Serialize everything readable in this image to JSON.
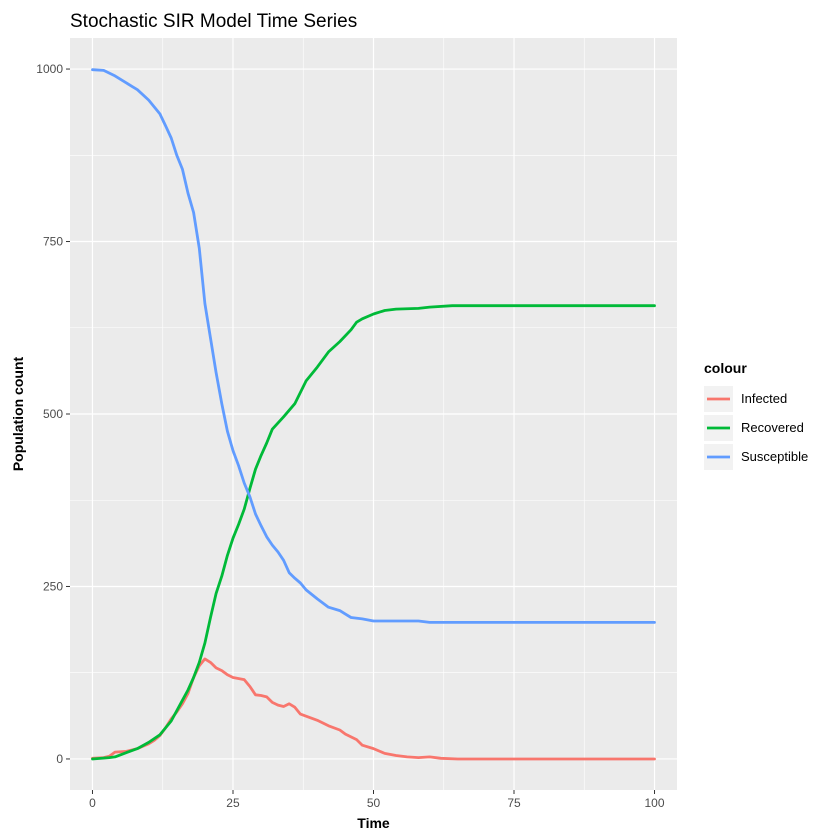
{
  "chart_data": {
    "type": "line",
    "title": "Stochastic SIR Model Time Series",
    "xlabel": "Time",
    "ylabel": "Population count",
    "xlim": [
      -4,
      104
    ],
    "ylim": [
      -45,
      1045
    ],
    "x_ticks": [
      0,
      25,
      50,
      75,
      100
    ],
    "y_ticks": [
      0,
      250,
      500,
      750,
      1000
    ],
    "grid": true,
    "legend": {
      "title": "colour",
      "position": "right"
    },
    "series": [
      {
        "name": "Infected",
        "color": "#F8766D",
        "points": [
          [
            0,
            1
          ],
          [
            2,
            2
          ],
          [
            3,
            4
          ],
          [
            4,
            10
          ],
          [
            6,
            11
          ],
          [
            8,
            15
          ],
          [
            10,
            22
          ],
          [
            11,
            27
          ],
          [
            12,
            34
          ],
          [
            13,
            45
          ],
          [
            14,
            58
          ],
          [
            15,
            68
          ],
          [
            16,
            80
          ],
          [
            17,
            95
          ],
          [
            18,
            118
          ],
          [
            19,
            135
          ],
          [
            20,
            145
          ],
          [
            21,
            140
          ],
          [
            22,
            132
          ],
          [
            23,
            128
          ],
          [
            24,
            122
          ],
          [
            25,
            118
          ],
          [
            27,
            115
          ],
          [
            28,
            105
          ],
          [
            29,
            93
          ],
          [
            30,
            92
          ],
          [
            31,
            90
          ],
          [
            32,
            82
          ],
          [
            33,
            78
          ],
          [
            34,
            76
          ],
          [
            35,
            80
          ],
          [
            36,
            75
          ],
          [
            37,
            65
          ],
          [
            38,
            62
          ],
          [
            40,
            56
          ],
          [
            42,
            48
          ],
          [
            44,
            42
          ],
          [
            45,
            36
          ],
          [
            47,
            28
          ],
          [
            48,
            20
          ],
          [
            50,
            15
          ],
          [
            52,
            8
          ],
          [
            54,
            5
          ],
          [
            56,
            3
          ],
          [
            58,
            2
          ],
          [
            60,
            3
          ],
          [
            62,
            1
          ],
          [
            65,
            0
          ],
          [
            100,
            0
          ]
        ]
      },
      {
        "name": "Recovered",
        "color": "#00BA38",
        "points": [
          [
            0,
            0
          ],
          [
            3,
            2
          ],
          [
            4,
            3
          ],
          [
            6,
            9
          ],
          [
            8,
            15
          ],
          [
            10,
            24
          ],
          [
            12,
            35
          ],
          [
            14,
            55
          ],
          [
            15,
            70
          ],
          [
            16,
            85
          ],
          [
            17,
            100
          ],
          [
            18,
            118
          ],
          [
            19,
            140
          ],
          [
            20,
            168
          ],
          [
            21,
            205
          ],
          [
            22,
            240
          ],
          [
            23,
            265
          ],
          [
            24,
            295
          ],
          [
            25,
            320
          ],
          [
            26,
            340
          ],
          [
            27,
            362
          ],
          [
            28,
            392
          ],
          [
            29,
            420
          ],
          [
            30,
            440
          ],
          [
            31,
            458
          ],
          [
            32,
            478
          ],
          [
            34,
            496
          ],
          [
            36,
            515
          ],
          [
            38,
            548
          ],
          [
            40,
            568
          ],
          [
            42,
            590
          ],
          [
            44,
            605
          ],
          [
            46,
            622
          ],
          [
            47,
            633
          ],
          [
            48,
            638
          ],
          [
            50,
            645
          ],
          [
            52,
            650
          ],
          [
            54,
            652
          ],
          [
            58,
            653
          ],
          [
            60,
            655
          ],
          [
            64,
            657
          ],
          [
            100,
            657
          ]
        ]
      },
      {
        "name": "Susceptible",
        "color": "#619CFF",
        "points": [
          [
            0,
            999
          ],
          [
            2,
            998
          ],
          [
            4,
            990
          ],
          [
            6,
            980
          ],
          [
            7,
            975
          ],
          [
            8,
            970
          ],
          [
            10,
            955
          ],
          [
            12,
            935
          ],
          [
            13,
            918
          ],
          [
            14,
            900
          ],
          [
            15,
            875
          ],
          [
            16,
            855
          ],
          [
            17,
            820
          ],
          [
            18,
            792
          ],
          [
            19,
            740
          ],
          [
            20,
            660
          ],
          [
            21,
            610
          ],
          [
            22,
            560
          ],
          [
            23,
            515
          ],
          [
            24,
            475
          ],
          [
            25,
            447
          ],
          [
            26,
            425
          ],
          [
            27,
            400
          ],
          [
            28,
            380
          ],
          [
            29,
            355
          ],
          [
            30,
            338
          ],
          [
            31,
            322
          ],
          [
            32,
            310
          ],
          [
            33,
            300
          ],
          [
            34,
            288
          ],
          [
            35,
            270
          ],
          [
            36,
            262
          ],
          [
            37,
            255
          ],
          [
            38,
            245
          ],
          [
            40,
            232
          ],
          [
            42,
            220
          ],
          [
            44,
            215
          ],
          [
            45,
            210
          ],
          [
            46,
            205
          ],
          [
            48,
            203
          ],
          [
            50,
            200
          ],
          [
            56,
            200
          ],
          [
            58,
            200
          ],
          [
            60,
            198
          ],
          [
            100,
            198
          ]
        ]
      }
    ]
  }
}
